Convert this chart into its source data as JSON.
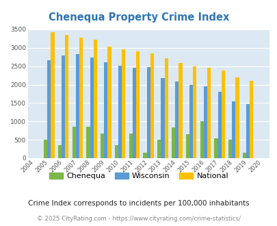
{
  "title": "Chenequa Property Crime Index",
  "years": [
    2004,
    2005,
    2006,
    2007,
    2008,
    2009,
    2010,
    2011,
    2012,
    2013,
    2014,
    2015,
    2016,
    2017,
    2018,
    2019,
    2020
  ],
  "chenequa": [
    0,
    500,
    350,
    860,
    860,
    670,
    350,
    670,
    155,
    510,
    840,
    650,
    1000,
    535,
    510,
    155,
    0
  ],
  "wisconsin": [
    0,
    2670,
    2800,
    2820,
    2740,
    2600,
    2510,
    2460,
    2480,
    2180,
    2090,
    1990,
    1950,
    1800,
    1545,
    1465,
    0
  ],
  "national": [
    0,
    3420,
    3340,
    3270,
    3210,
    3040,
    2950,
    2900,
    2850,
    2720,
    2590,
    2490,
    2460,
    2380,
    2200,
    2110,
    0
  ],
  "chenequa_color": "#7ab648",
  "wisconsin_color": "#5b9bd5",
  "national_color": "#ffc000",
  "bg_color": "#dde9f2",
  "title_color": "#2e75b6",
  "subtitle": "Crime Index corresponds to incidents per 100,000 inhabitants",
  "footer": "© 2025 CityRating.com - https://www.cityrating.com/crime-statistics/",
  "ylim": [
    0,
    3500
  ],
  "yticks": [
    0,
    500,
    1000,
    1500,
    2000,
    2500,
    3000,
    3500
  ]
}
